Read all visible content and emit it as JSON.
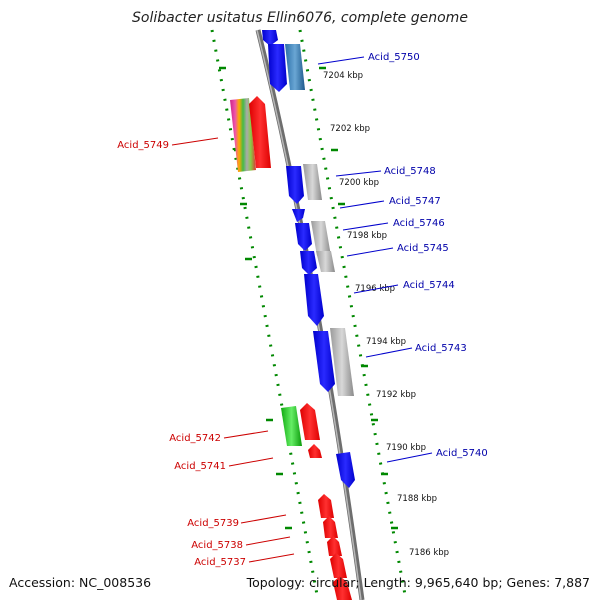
{
  "title": "Solibacter usitatus Ellin6076, complete genome",
  "footer": {
    "accession": "Accession: NC_008536",
    "info": "Topology: circular; Length: 9,965,640 bp; Genes: 7,887"
  },
  "colors": {
    "forward_label": "#0000aa",
    "reverse_label": "#cc0000",
    "forward_gene": "#0000ee",
    "reverse_gene": "#ff0000",
    "backbone": "#888888",
    "ruler_dots": "#008800"
  },
  "kbp_ticks": [
    "7204 kbp",
    "7202 kbp",
    "7200 kbp",
    "7198 kbp",
    "7196 kbp",
    "7194 kbp",
    "7192 kbp",
    "7190 kbp",
    "7188 kbp",
    "7186 kbp"
  ],
  "forward_labels": [
    "Acid_5750",
    "Acid_5748",
    "Acid_5747",
    "Acid_5746",
    "Acid_5745",
    "Acid_5744",
    "Acid_5743",
    "Acid_5740"
  ],
  "reverse_labels": [
    "Acid_5749",
    "Acid_5742",
    "Acid_5741",
    "Acid_5739",
    "Acid_5738",
    "Acid_5737"
  ]
}
